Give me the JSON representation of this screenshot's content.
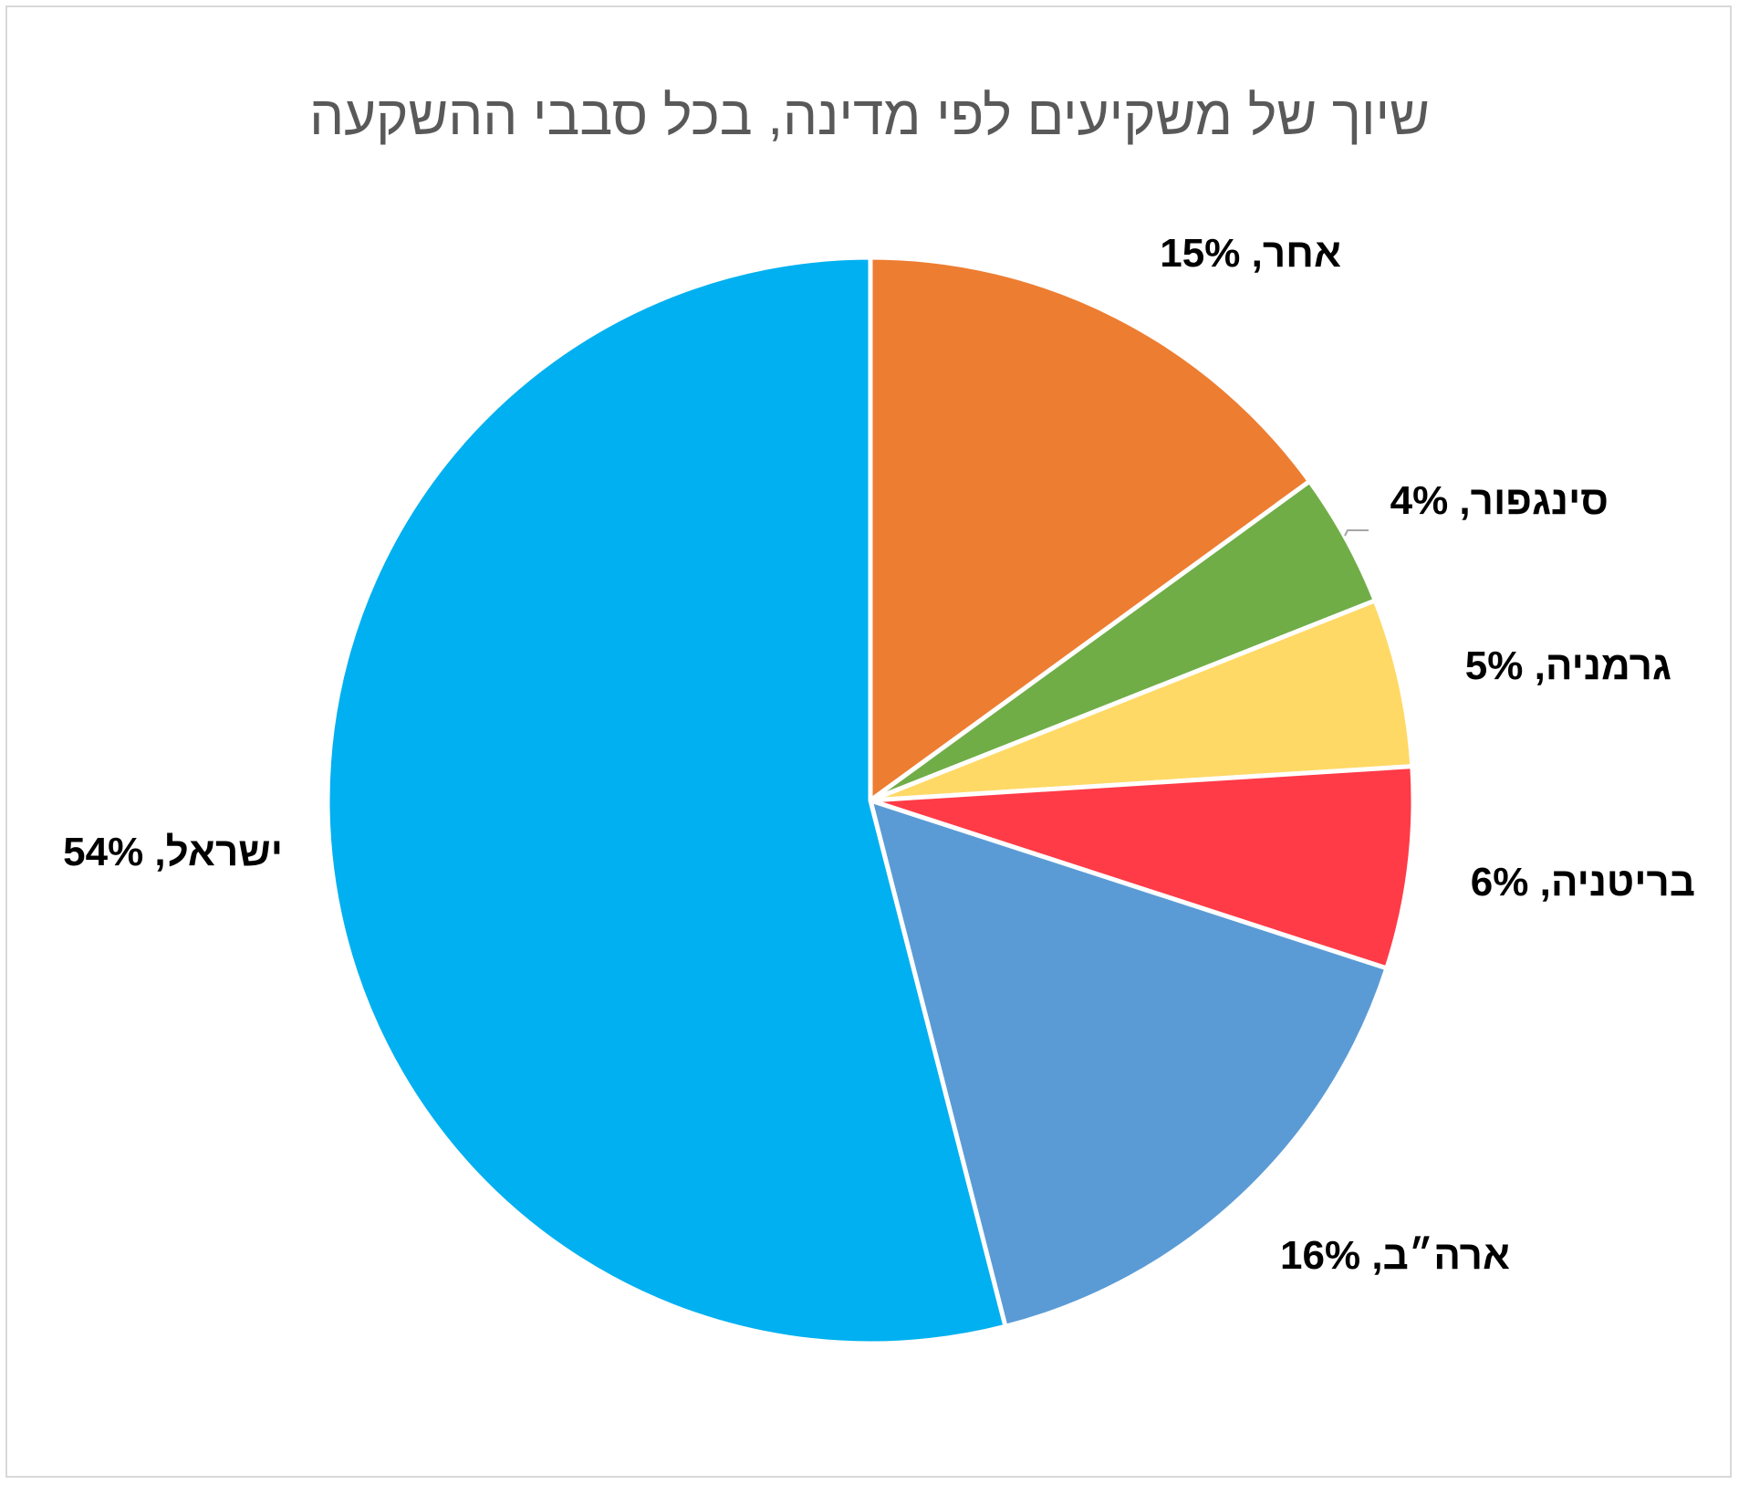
{
  "chart_data": {
    "type": "pie",
    "title": "שיוך של משקיעים לפי מדינה, בכל סבבי ההשקעה",
    "start_angle": "12 o'clock",
    "direction": "clockwise",
    "slices": [
      {
        "label": "אחר",
        "value": 15,
        "display": "15%",
        "color": "#ED7D31"
      },
      {
        "label": "סינגפור",
        "value": 4,
        "display": "4%",
        "color": "#70AD47"
      },
      {
        "label": "גרמניה",
        "value": 5,
        "display": "5%",
        "color": "#FFD966"
      },
      {
        "label": "בריטניה",
        "value": 6,
        "display": "6%",
        "color": "#FF3B47"
      },
      {
        "label": "ארה״ב",
        "value": 16,
        "display": "16%",
        "color": "#5B9BD5"
      },
      {
        "label": "ישראל",
        "value": 54,
        "display": "54%",
        "color": "#00B0F0"
      }
    ]
  }
}
